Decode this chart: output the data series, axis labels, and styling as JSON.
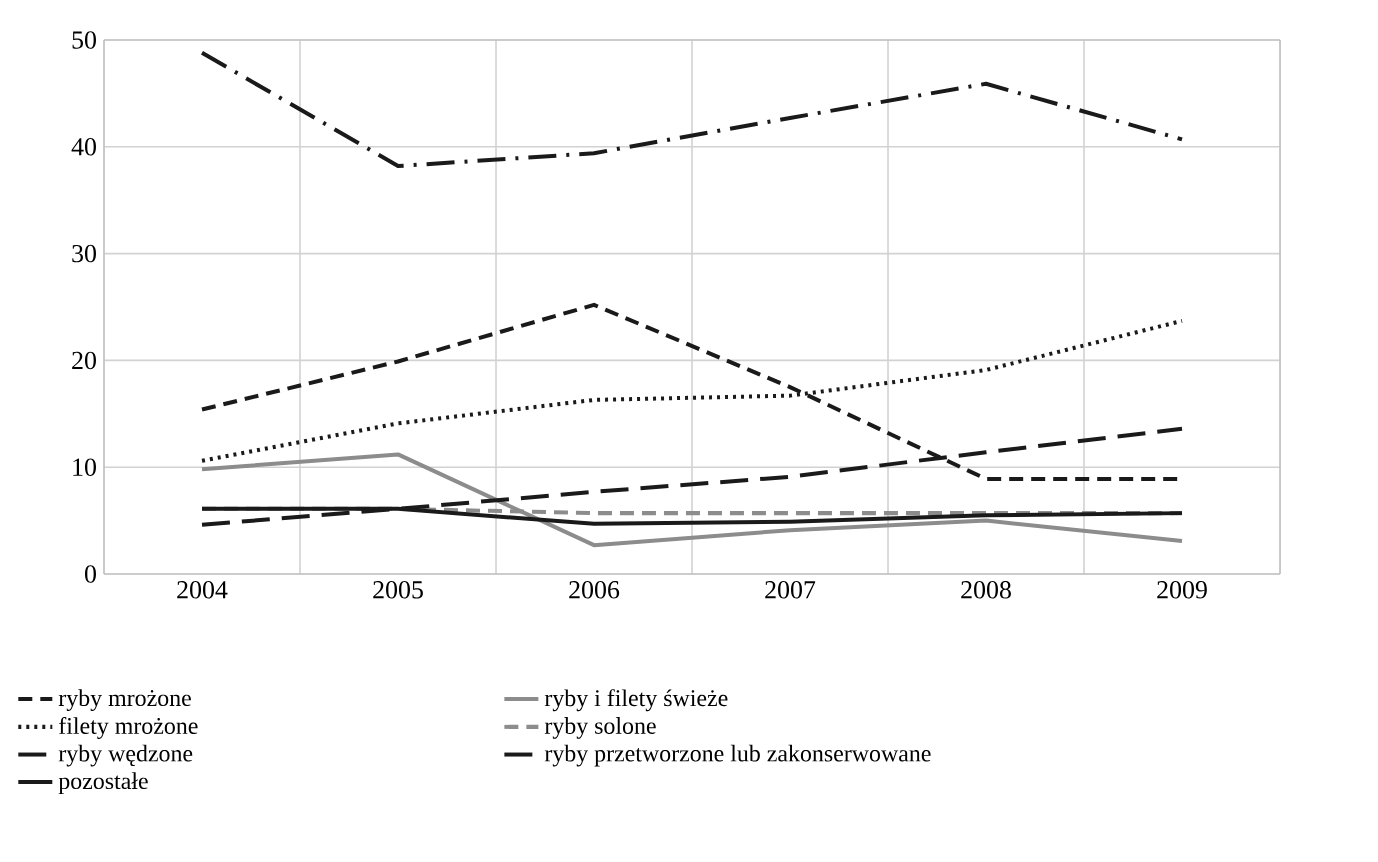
{
  "chart_data": {
    "type": "line",
    "categories": [
      "2004",
      "2005",
      "2006",
      "2007",
      "2008",
      "2009"
    ],
    "ylim": [
      0,
      50
    ],
    "yticks": [
      0,
      10,
      20,
      30,
      40,
      50
    ],
    "grid": true,
    "legend": "bottom",
    "series": [
      {
        "name": "ryby mrożone",
        "color": "#1a1a1a",
        "line_style": "dashed",
        "values": [
          15.4,
          19.9,
          25.2,
          17.5,
          8.9,
          8.9
        ]
      },
      {
        "name": "ryby i filety świeże",
        "color": "#8c8c8c",
        "line_style": "solid",
        "values": [
          9.8,
          11.2,
          2.7,
          4.1,
          5.0,
          3.1
        ]
      },
      {
        "name": "filety mrożone",
        "color": "#1a1a1a",
        "line_style": "dotted",
        "values": [
          10.6,
          14.1,
          16.3,
          16.7,
          19.1,
          23.7
        ]
      },
      {
        "name": "ryby solone",
        "color": "#8c8c8c",
        "line_style": "dashed",
        "values": [
          6.1,
          6.1,
          5.7,
          5.7,
          5.7,
          5.7
        ]
      },
      {
        "name": "ryby wędzone",
        "color": "#1a1a1a",
        "line_style": "long dashed",
        "values": [
          4.6,
          6.1,
          7.7,
          9.1,
          11.4,
          13.6
        ]
      },
      {
        "name": "ryby przetworzone lub zakonserwowane",
        "color": "#1a1a1a",
        "line_style": "dash dot",
        "values": [
          48.8,
          38.2,
          39.4,
          42.7,
          45.9,
          40.7
        ]
      },
      {
        "name": "pozostałe",
        "color": "#1a1a1a",
        "line_style": "solid",
        "values": [
          6.1,
          6.1,
          4.7,
          4.9,
          5.5,
          5.7
        ]
      }
    ]
  }
}
